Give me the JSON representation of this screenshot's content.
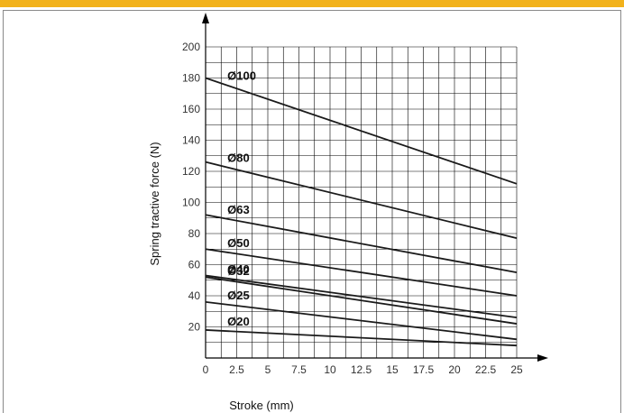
{
  "colors": {
    "top_bar": "#F2B21B",
    "grid": "#000000",
    "line": "#1a1a1a",
    "background": "#ffffff"
  },
  "chart_data": {
    "type": "line",
    "title": "",
    "xlabel": "Stroke (mm)",
    "ylabel": "Spring tractive force (N)",
    "xlim": [
      0,
      25
    ],
    "ylim": [
      0,
      200
    ],
    "grid": true,
    "legend": "inline labels near line start",
    "x_ticks": [
      "0",
      "2.5",
      "5",
      "7.5",
      "10",
      "12.5",
      "15",
      "17.5",
      "20",
      "22.5",
      "25"
    ],
    "y_ticks": [
      "20",
      "40",
      "60",
      "80",
      "100",
      "120",
      "140",
      "160",
      "180",
      "200"
    ],
    "x": [
      0,
      25
    ],
    "series": [
      {
        "name": "Ø100",
        "values": [
          180,
          112
        ]
      },
      {
        "name": "Ø80",
        "values": [
          126,
          77
        ]
      },
      {
        "name": "Ø63",
        "values": [
          92,
          55
        ]
      },
      {
        "name": "Ø50",
        "values": [
          70,
          40
        ]
      },
      {
        "name": "Ø40",
        "values": [
          53,
          26
        ]
      },
      {
        "name": "Ø32",
        "values": [
          52,
          22
        ]
      },
      {
        "name": "Ø25",
        "values": [
          36,
          12
        ]
      },
      {
        "name": "Ø20",
        "values": [
          18,
          8
        ]
      }
    ]
  }
}
